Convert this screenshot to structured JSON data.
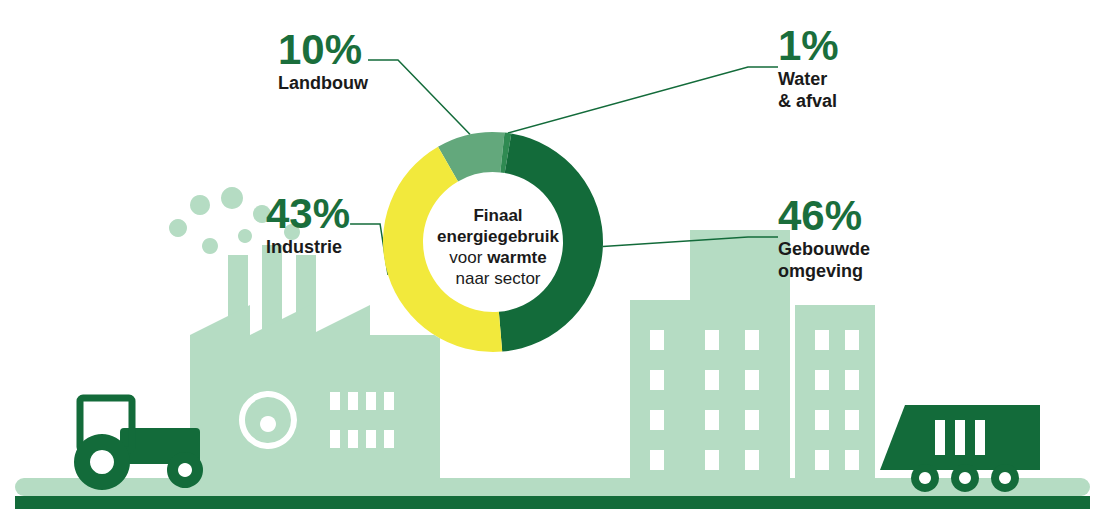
{
  "chart_data": {
    "type": "donut",
    "title": "Finaal energiegebruik voor warmte naar sector",
    "categories": [
      "Landbouw",
      "Water & afval",
      "Gebouwde omgeving",
      "Industrie"
    ],
    "values": [
      10,
      1,
      46,
      43
    ],
    "value_labels": [
      "10%",
      "1%",
      "46%",
      "43%"
    ],
    "colors": [
      "#63a87c",
      "#2f8a52",
      "#136b3a",
      "#f2e93c"
    ],
    "data_labels": true
  }
}
